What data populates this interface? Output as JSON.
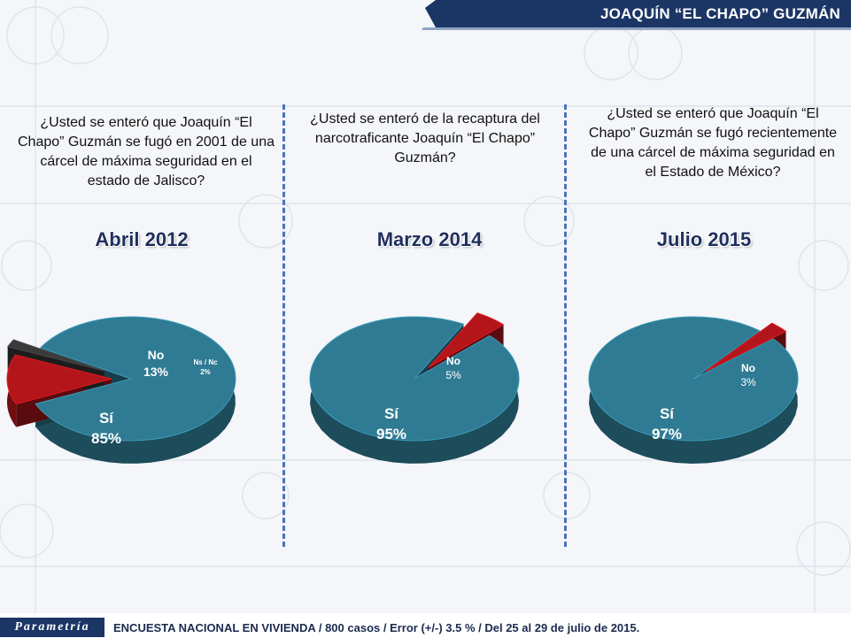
{
  "header": {
    "title": "JOAQUÍN “EL CHAPO” GUZMÁN"
  },
  "footer": {
    "logo_text": "Parametría",
    "survey_note": "ENCUESTA NACIONAL EN VIVIENDA / 800 casos / Error (+/-) 3.5 % / Del 25 al 29 de julio de 2015."
  },
  "colors": {
    "yes": "#2f7b93",
    "no": "#b3151b",
    "nsnc": "#3a3a3a",
    "header": "#1b3565",
    "divider": "#4a73b8"
  },
  "panels": [
    {
      "question": "¿Usted se enteró que Joaquín “El Chapo” Guzmán se fugó en 2001 de una cárcel de máxima seguridad en el estado de Jalisco?",
      "period": "Abril 2012"
    },
    {
      "question": "¿Usted se enteró de la recaptura del narcotraficante Joaquín “El Chapo” Guzmán?",
      "period": "Marzo 2014"
    },
    {
      "question": "¿Usted se enteró que Joaquín “El Chapo” Guzmán se fugó recientemente de una cárcel de máxima seguridad en el Estado de México?",
      "period": "Julio 2015"
    }
  ],
  "chart_data": [
    {
      "type": "pie",
      "title": "Abril 2012",
      "slices": [
        {
          "label": "Sí",
          "value": 85,
          "value_label": "85%"
        },
        {
          "label": "No",
          "value": 13,
          "value_label": "13%"
        },
        {
          "label": "Ns / Nc",
          "value": 2,
          "value_label": "2%"
        }
      ]
    },
    {
      "type": "pie",
      "title": "Marzo 2014",
      "slices": [
        {
          "label": "Sí",
          "value": 95,
          "value_label": "95%"
        },
        {
          "label": "No",
          "value": 5,
          "value_label": "5%"
        }
      ]
    },
    {
      "type": "pie",
      "title": "Julio 2015",
      "slices": [
        {
          "label": "Sí",
          "value": 97,
          "value_label": "97%"
        },
        {
          "label": "No",
          "value": 3,
          "value_label": "3%"
        }
      ]
    }
  ]
}
